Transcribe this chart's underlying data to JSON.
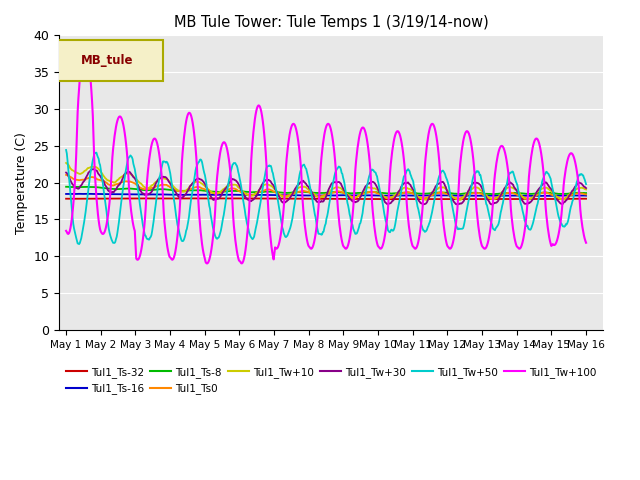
{
  "title": "MB Tule Tower: Tule Temps 1 (3/19/14-now)",
  "ylabel": "Temperature (C)",
  "xlim": [
    -0.2,
    15.5
  ],
  "ylim": [
    0,
    40
  ],
  "yticks": [
    0,
    5,
    10,
    15,
    20,
    25,
    30,
    35,
    40
  ],
  "bg_color": "#e8e8e8",
  "fig_color": "#ffffff",
  "legend_box_facecolor": "#f5f0c8",
  "legend_box_edgecolor": "#aaaa00",
  "legend_box_label": "MB_tule",
  "legend_box_text_color": "#880000",
  "series_order": [
    "Tul1_Ts-32",
    "Tul1_Ts-16",
    "Tul1_Ts-8",
    "Tul1_Ts0",
    "Tul1_Tw+10",
    "Tul1_Tw+30",
    "Tul1_Tw+50",
    "Tul1_Tw+100"
  ],
  "series": {
    "Tul1_Ts-32": {
      "color": "#cc0000",
      "lw": 1.3
    },
    "Tul1_Ts-16": {
      "color": "#0000cc",
      "lw": 1.3
    },
    "Tul1_Ts-8": {
      "color": "#00bb00",
      "lw": 1.3
    },
    "Tul1_Ts0": {
      "color": "#ff8800",
      "lw": 1.3
    },
    "Tul1_Tw+10": {
      "color": "#cccc00",
      "lw": 1.3
    },
    "Tul1_Tw+30": {
      "color": "#880088",
      "lw": 1.3
    },
    "Tul1_Tw+50": {
      "color": "#00cccc",
      "lw": 1.3
    },
    "Tul1_Tw+100": {
      "color": "#ff00ff",
      "lw": 1.5
    }
  },
  "x_tick_labels": [
    "May 1",
    "May 2",
    "May 3",
    "May 4",
    "May 5",
    "May 6",
    "May 7",
    "May 8",
    "May 9",
    "May 10",
    "May 11",
    "May 12",
    "May 13",
    "May 14",
    "May 15",
    "May 16"
  ],
  "x_tick_positions": [
    0,
    1,
    2,
    3,
    4,
    5,
    6,
    7,
    8,
    9,
    10,
    11,
    12,
    13,
    14,
    15
  ]
}
